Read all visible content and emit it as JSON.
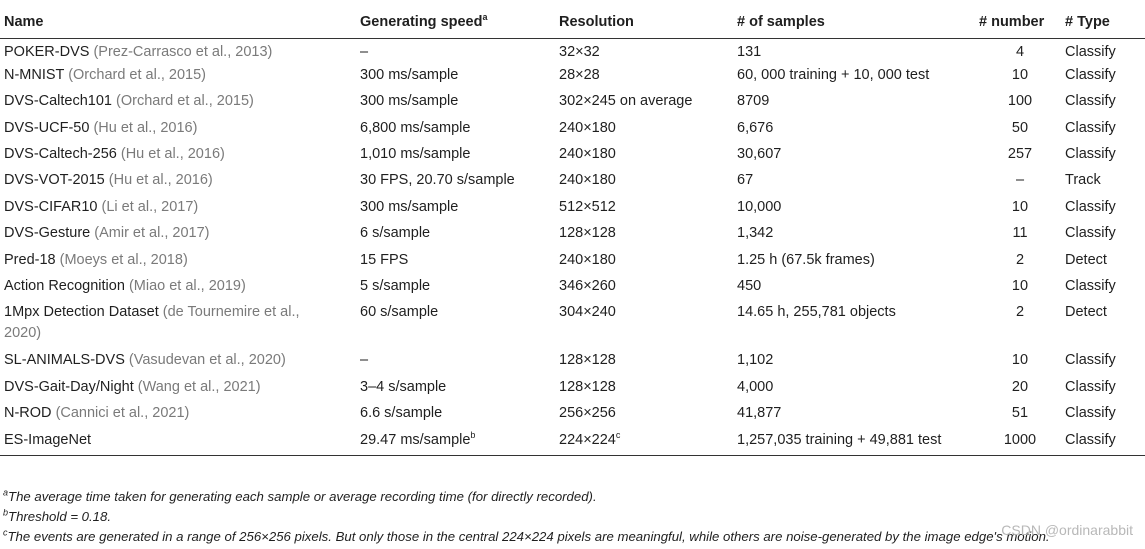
{
  "table": {
    "headers": {
      "name": "Name",
      "speed": "Generating speed",
      "speed_mark": "a",
      "resolution": "Resolution",
      "samples": "# of samples",
      "number": "# number",
      "type": "# Type"
    },
    "rows": [
      {
        "name": "POKER-DVS",
        "cite": "(Prez-Carrasco et al., 2013)",
        "speed": "–",
        "res": "32×32",
        "samples": "131",
        "number": "4",
        "type": "Classify"
      },
      {
        "name": "N-MNIST",
        "cite": "(Orchard et al., 2015)",
        "speed": "300 ms/sample",
        "res": "28×28",
        "samples": "60, 000 training + 10, 000 test",
        "number": "10",
        "type": "Classify"
      },
      {
        "name": "DVS-Caltech101",
        "cite": "(Orchard et al., 2015)",
        "speed": "300 ms/sample",
        "res": "302×245 on average",
        "samples": "8709",
        "number": "100",
        "type": "Classify"
      },
      {
        "name": "DVS-UCF-50",
        "cite": "(Hu et al., 2016)",
        "speed": "6,800 ms/sample",
        "res": "240×180",
        "samples": "6,676",
        "number": "50",
        "type": "Classify"
      },
      {
        "name": "DVS-Caltech-256",
        "cite": "(Hu et al., 2016)",
        "speed": "1,010 ms/sample",
        "res": "240×180",
        "samples": "30,607",
        "number": "257",
        "type": "Classify"
      },
      {
        "name": "DVS-VOT-2015",
        "cite": "(Hu et al., 2016)",
        "speed": "30 FPS, 20.70 s/sample",
        "res": "240×180",
        "samples": "67",
        "number": "–",
        "type": "Track"
      },
      {
        "name": "DVS-CIFAR10",
        "cite": "(Li et al., 2017)",
        "speed": "300 ms/sample",
        "res": "512×512",
        "samples": "10,000",
        "number": "10",
        "type": "Classify"
      },
      {
        "name": "DVS-Gesture",
        "cite": "(Amir et al., 2017)",
        "speed": "6 s/sample",
        "res": "128×128",
        "samples": "1,342",
        "number": "11",
        "type": "Classify"
      },
      {
        "name": "Pred-18",
        "cite": "(Moeys et al., 2018)",
        "speed": " 15 FPS",
        "res": "240×180",
        "samples": "1.25 h (67.5k frames)",
        "number": "2",
        "type": "Detect"
      },
      {
        "name": "Action Recognition",
        "cite": "(Miao et al., 2019)",
        "speed": "5 s/sample",
        "res": "346×260",
        "samples": "450",
        "number": "10",
        "type": "Classify"
      },
      {
        "name": "1Mpx Detection Dataset",
        "cite": "(de Tournemire et al.,",
        "cite2": "2020)",
        "speed": "60 s/sample",
        "res": "304×240",
        "samples": "14.65 h, 255,781 objects",
        "number": "2",
        "type": "Detect"
      },
      {
        "name": "SL-ANIMALS-DVS",
        "cite": "(Vasudevan et al., 2020)",
        "speed": "–",
        "res": "128×128",
        "samples": "1,102",
        "number": "10",
        "type": "Classify"
      },
      {
        "name": "DVS-Gait-Day/Night",
        "cite": "(Wang et al., 2021)",
        "speed": "3–4 s/sample",
        "res": "128×128",
        "samples": "4,000",
        "number": "20",
        "type": "Classify"
      },
      {
        "name": "N-ROD",
        "cite": "(Cannici et al., 2021)",
        "speed": "6.6 s/sample",
        "res": "256×256",
        "samples": "41,877",
        "number": "51",
        "type": "Classify"
      },
      {
        "name": "ES-ImageNet",
        "cite": "",
        "speed": "29.47 ms/sample",
        "speed_mark": "b",
        "res": "224×224",
        "res_mark": "c",
        "samples": "1,257,035 training + 49,881 test",
        "number": "1000",
        "type": "Classify"
      }
    ]
  },
  "footnotes": [
    {
      "mark": "a",
      "text": "The average time taken for generating each sample or average recording time (for directly recorded)."
    },
    {
      "mark": "b",
      "text": "Threshold = 0.18."
    },
    {
      "mark": "c",
      "text": "The events are generated in a range of 256×256 pixels. But only those in the central 224×224 pixels are meaningful, while others are noise-generated by the image edge's motion."
    }
  ],
  "watermark": "CSDN @ordinarabbit"
}
